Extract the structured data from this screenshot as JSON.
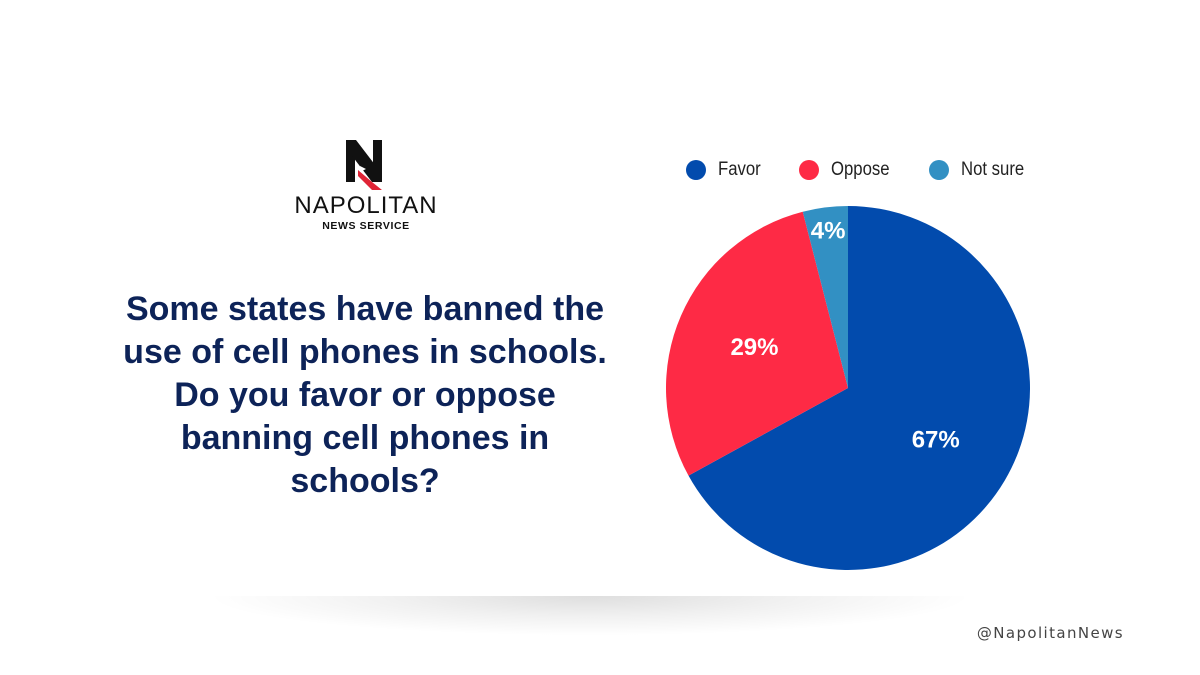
{
  "brand": {
    "name": "NAPOLITAN",
    "subtitle": "NEWS SERVICE",
    "logo_colors": {
      "dark": "#111111",
      "accent": "#e02436"
    }
  },
  "question": "Some states have banned the use of cell phones in schools. Do you favor or oppose banning cell phones in schools?",
  "handle": "@NapolitanNews",
  "chart_data": {
    "type": "pie",
    "legend_position": "top",
    "slices": [
      {
        "label": "Favor",
        "value": 67,
        "display": "67%",
        "color": "#024bad"
      },
      {
        "label": "Oppose",
        "value": 29,
        "display": "29%",
        "color": "#fe2a45"
      },
      {
        "label": "Not sure",
        "value": 4,
        "display": "4%",
        "color": "#3290c3"
      }
    ]
  }
}
